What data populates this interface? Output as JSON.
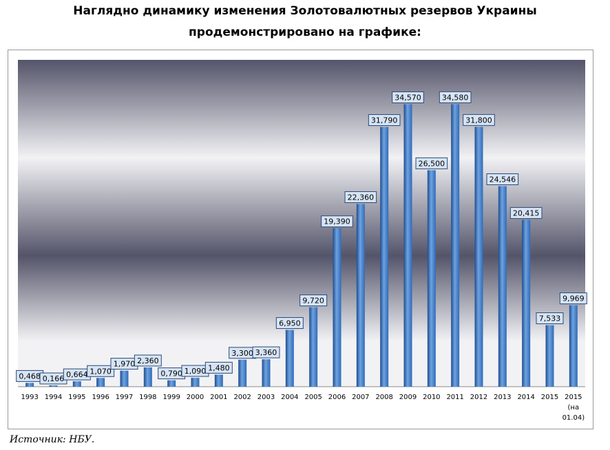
{
  "header": {
    "line1": "Наглядно динамику изменения Золотовалютных резервов Украины",
    "line2": "продемонстрировано на графике:"
  },
  "source": "Источник: НБУ.",
  "chart_data": {
    "type": "bar",
    "categories": [
      "1993",
      "1994",
      "1995",
      "1996",
      "1997",
      "1998",
      "1999",
      "2000",
      "2001",
      "2002",
      "2003",
      "2004",
      "2005",
      "2006",
      "2007",
      "2008",
      "2009",
      "2010",
      "2011",
      "2012",
      "2013",
      "2014",
      "2015",
      "2015 (на 01.04)"
    ],
    "values": [
      0.468,
      0.166,
      0.664,
      1.07,
      1.97,
      2.36,
      0.79,
      1.09,
      1.48,
      3.3,
      3.36,
      6.95,
      9.72,
      19.39,
      22.36,
      31.79,
      34.57,
      26.5,
      34.58,
      31.8,
      24.546,
      20.415,
      7.533,
      9.969
    ],
    "value_labels": [
      "0,468",
      "0,166",
      "0,664",
      "1,070",
      "1,970",
      "2,360",
      "0,790",
      "1,090",
      "1,480",
      "3,300",
      "3,360",
      "6,950",
      "9,720",
      "19,390",
      "22,360",
      "31,790",
      "34,570",
      "26,500",
      "34,580",
      "31,800",
      "24,546",
      "20,415",
      "7,533",
      "9,969"
    ],
    "category_lines": [
      [
        "1993"
      ],
      [
        "1994"
      ],
      [
        "1995"
      ],
      [
        "1996"
      ],
      [
        "1997"
      ],
      [
        "1998"
      ],
      [
        "1999"
      ],
      [
        "2000"
      ],
      [
        "2001"
      ],
      [
        "2002"
      ],
      [
        "2003"
      ],
      [
        "2004"
      ],
      [
        "2005"
      ],
      [
        "2006"
      ],
      [
        "2007"
      ],
      [
        "2008"
      ],
      [
        "2009"
      ],
      [
        "2010"
      ],
      [
        "2011"
      ],
      [
        "2012"
      ],
      [
        "2013"
      ],
      [
        "2014"
      ],
      [
        "2015"
      ],
      [
        "2015",
        "(на",
        "01.04)"
      ]
    ],
    "ylim": [
      0,
      40
    ],
    "grid": false,
    "legend": "none",
    "colors": {
      "bar": "#2f6ab8",
      "bar_light": "#6fa3e0",
      "bar_dark": "#1e4d8f",
      "label_box": "#d6e4f5",
      "label_border": "#2a4a75",
      "plot_bg_light": "#f2f2f5",
      "plot_bg_dark": "#54546a"
    }
  }
}
